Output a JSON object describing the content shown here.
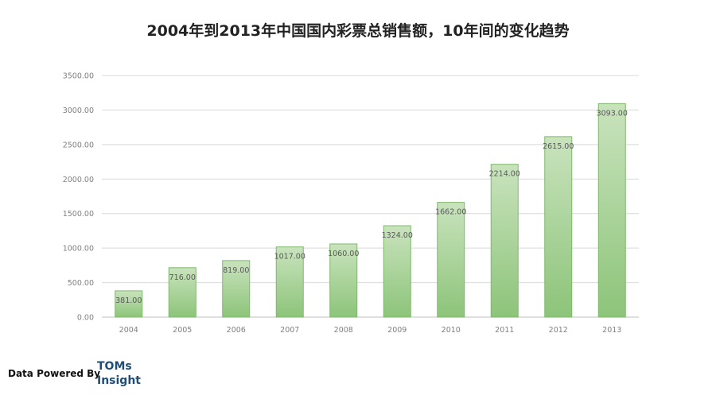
{
  "chart_data": {
    "type": "bar",
    "title": "2004年到2013年中国国内彩票总销售额，10年间的变化趋势",
    "categories": [
      "2004",
      "2005",
      "2006",
      "2007",
      "2008",
      "2009",
      "2010",
      "2011",
      "2012",
      "2013"
    ],
    "values": [
      381.0,
      716.0,
      819.0,
      1017.0,
      1060.0,
      1324.0,
      1662.0,
      2214.0,
      2615.0,
      3093.0
    ],
    "data_labels": [
      "381.00",
      "716.00",
      "819.00",
      "1017.00",
      "1060.00",
      "1324.00",
      "1662.00",
      "2214.00",
      "2615.00",
      "3093.00"
    ],
    "ylim": [
      0,
      3500
    ],
    "yticks": [
      "0.00",
      "500.00",
      "1000.00",
      "1500.00",
      "2000.00",
      "2500.00",
      "3000.00",
      "3500.00"
    ],
    "xlabel": "",
    "ylabel": "",
    "grid": true,
    "legend": "none",
    "bar_color_top": "#c9e3bd",
    "bar_color_bottom": "#8dc47a",
    "bar_border": "#7fb86c"
  },
  "footer": {
    "powered_by": "Data Powered By",
    "brand_line1": "TOMs",
    "brand_line2": "Insight"
  }
}
